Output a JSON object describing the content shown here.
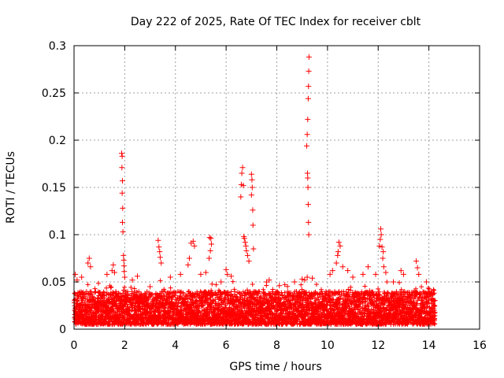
{
  "chart_data": {
    "type": "scatter",
    "title": "Day 222 of 2025, Rate Of TEC Index for receiver cblt",
    "xlabel": "GPS time / hours",
    "ylabel": "ROTI / TECUs",
    "xlim": [
      0,
      16
    ],
    "ylim": [
      0,
      0.3
    ],
    "xticks": [
      0,
      2,
      4,
      6,
      8,
      10,
      12,
      14,
      16
    ],
    "yticks": [
      0,
      0.05,
      0.1,
      0.15,
      0.2,
      0.25,
      0.3
    ],
    "xtick_labels": [
      "0",
      "2",
      "4",
      "6",
      "8",
      "10",
      "12",
      "14",
      "16"
    ],
    "ytick_labels": [
      "0",
      "0.05",
      "0.1",
      "0.15",
      "0.2",
      "0.25",
      "0.3"
    ],
    "grid": true,
    "marker": "+",
    "color": "#ff0000",
    "data_range_hours": [
      0,
      14.25
    ],
    "baseline_band": [
      0.005,
      0.04
    ],
    "series": [
      {
        "name": "cblt",
        "points": [
          [
            1.88,
            0.186
          ],
          [
            1.9,
            0.183
          ],
          [
            1.89,
            0.171
          ],
          [
            1.91,
            0.157
          ],
          [
            1.9,
            0.144
          ],
          [
            1.92,
            0.128
          ],
          [
            1.91,
            0.113
          ],
          [
            1.93,
            0.103
          ],
          [
            1.95,
            0.078
          ],
          [
            1.96,
            0.073
          ],
          [
            1.97,
            0.067
          ],
          [
            1.98,
            0.061
          ],
          [
            2.0,
            0.055
          ],
          [
            3.32,
            0.094
          ],
          [
            3.35,
            0.087
          ],
          [
            3.38,
            0.082
          ],
          [
            3.4,
            0.076
          ],
          [
            3.44,
            0.07
          ],
          [
            4.62,
            0.091
          ],
          [
            4.7,
            0.093
          ],
          [
            4.75,
            0.088
          ],
          [
            4.55,
            0.075
          ],
          [
            5.35,
            0.097
          ],
          [
            5.4,
            0.096
          ],
          [
            5.42,
            0.09
          ],
          [
            5.38,
            0.083
          ],
          [
            5.33,
            0.075
          ],
          [
            6.58,
            0.14
          ],
          [
            6.6,
            0.153
          ],
          [
            6.62,
            0.165
          ],
          [
            6.65,
            0.171
          ],
          [
            6.68,
            0.152
          ],
          [
            6.7,
            0.098
          ],
          [
            6.72,
            0.096
          ],
          [
            6.75,
            0.092
          ],
          [
            6.78,
            0.088
          ],
          [
            6.8,
            0.083
          ],
          [
            6.85,
            0.078
          ],
          [
            6.9,
            0.072
          ],
          [
            7.0,
            0.164
          ],
          [
            7.02,
            0.158
          ],
          [
            7.03,
            0.15
          ],
          [
            7.0,
            0.142
          ],
          [
            7.05,
            0.126
          ],
          [
            7.06,
            0.11
          ],
          [
            7.08,
            0.085
          ],
          [
            9.18,
            0.194
          ],
          [
            9.2,
            0.206
          ],
          [
            9.22,
            0.222
          ],
          [
            9.24,
            0.244
          ],
          [
            9.25,
            0.257
          ],
          [
            9.26,
            0.273
          ],
          [
            9.27,
            0.288
          ],
          [
            9.21,
            0.165
          ],
          [
            9.22,
            0.16
          ],
          [
            9.23,
            0.15
          ],
          [
            9.24,
            0.132
          ],
          [
            9.25,
            0.113
          ],
          [
            9.26,
            0.1
          ],
          [
            9.2,
            0.055
          ],
          [
            9.1,
            0.052
          ],
          [
            10.45,
            0.092
          ],
          [
            10.5,
            0.088
          ],
          [
            10.42,
            0.082
          ],
          [
            10.4,
            0.078
          ],
          [
            10.35,
            0.07
          ],
          [
            12.1,
            0.106
          ],
          [
            12.12,
            0.1
          ],
          [
            12.08,
            0.095
          ],
          [
            12.05,
            0.088
          ],
          [
            12.15,
            0.087
          ],
          [
            12.2,
            0.082
          ],
          [
            12.18,
            0.075
          ],
          [
            12.22,
            0.066
          ],
          [
            0.05,
            0.058
          ],
          [
            0.12,
            0.052
          ],
          [
            0.3,
            0.055
          ],
          [
            0.55,
            0.07
          ],
          [
            0.6,
            0.075
          ],
          [
            0.65,
            0.066
          ],
          [
            1.3,
            0.058
          ],
          [
            1.5,
            0.062
          ],
          [
            1.55,
            0.068
          ],
          [
            1.6,
            0.06
          ],
          [
            2.3,
            0.052
          ],
          [
            2.5,
            0.056
          ],
          [
            3.0,
            0.045
          ],
          [
            3.8,
            0.055
          ],
          [
            4.2,
            0.058
          ],
          [
            4.5,
            0.068
          ],
          [
            5.0,
            0.058
          ],
          [
            5.2,
            0.06
          ],
          [
            5.8,
            0.05
          ],
          [
            6.0,
            0.063
          ],
          [
            6.05,
            0.058
          ],
          [
            6.2,
            0.056
          ],
          [
            7.6,
            0.05
          ],
          [
            7.7,
            0.052
          ],
          [
            8.1,
            0.046
          ],
          [
            8.7,
            0.05
          ],
          [
            9.0,
            0.053
          ],
          [
            9.4,
            0.054
          ],
          [
            10.1,
            0.058
          ],
          [
            10.2,
            0.062
          ],
          [
            10.6,
            0.066
          ],
          [
            10.8,
            0.062
          ],
          [
            11.0,
            0.055
          ],
          [
            11.4,
            0.058
          ],
          [
            11.6,
            0.066
          ],
          [
            11.9,
            0.058
          ],
          [
            12.3,
            0.06
          ],
          [
            12.6,
            0.05
          ],
          [
            12.9,
            0.062
          ],
          [
            13.0,
            0.058
          ],
          [
            13.5,
            0.072
          ],
          [
            13.55,
            0.065
          ],
          [
            13.6,
            0.058
          ],
          [
            13.9,
            0.05
          ],
          [
            14.1,
            0.04
          ]
        ]
      }
    ]
  }
}
